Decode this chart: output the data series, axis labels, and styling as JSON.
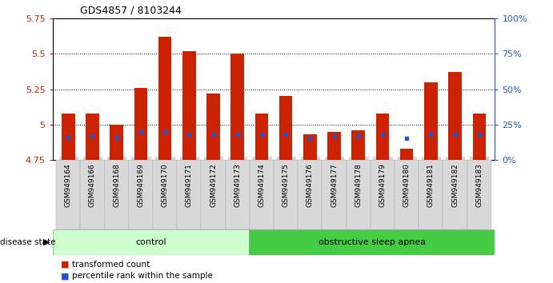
{
  "title": "GDS4857 / 8103244",
  "samples": [
    "GSM949164",
    "GSM949166",
    "GSM949168",
    "GSM949169",
    "GSM949170",
    "GSM949171",
    "GSM949172",
    "GSM949173",
    "GSM949174",
    "GSM949175",
    "GSM949176",
    "GSM949177",
    "GSM949178",
    "GSM949179",
    "GSM949180",
    "GSM949181",
    "GSM949182",
    "GSM949183"
  ],
  "bar_values": [
    5.08,
    5.08,
    5.0,
    5.26,
    5.62,
    5.52,
    5.22,
    5.5,
    5.08,
    5.2,
    4.93,
    4.95,
    4.96,
    5.08,
    4.83,
    5.3,
    5.37,
    5.08
  ],
  "blue_values": [
    4.91,
    4.92,
    4.91,
    4.95,
    4.95,
    4.93,
    4.93,
    4.93,
    4.93,
    4.93,
    4.9,
    4.92,
    4.92,
    4.93,
    4.9,
    4.93,
    4.93,
    4.93
  ],
  "ymin": 4.75,
  "ymax": 5.75,
  "bar_color": "#cc2200",
  "blue_color": "#2255cc",
  "grid_values": [
    5.0,
    5.25,
    5.5
  ],
  "yticks": [
    4.75,
    5.0,
    5.25,
    5.5,
    5.75
  ],
  "ytick_labels": [
    "4.75",
    "5",
    "5.25",
    "5.5",
    "5.75"
  ],
  "right_axis_pcts": [
    0,
    25,
    50,
    75,
    100
  ],
  "right_axis_labels": [
    "0%",
    "25%",
    "50%",
    "75%",
    "100%"
  ],
  "n_control": 8,
  "control_label": "control",
  "disease_label": "obstructive sleep apnea",
  "disease_state_label": "disease state",
  "legend_red": "transformed count",
  "legend_blue": "percentile rank within the sample",
  "control_color": "#ccffcc",
  "disease_color": "#44cc44",
  "bar_width": 0.55,
  "bg_color": "white",
  "spine_color": "black",
  "tick_bg": "#d8d8d8"
}
